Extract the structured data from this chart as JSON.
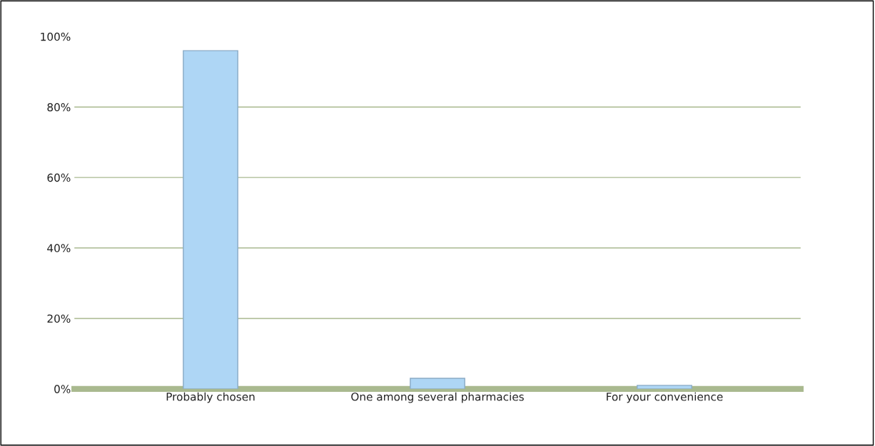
{
  "chart_data": {
    "type": "bar",
    "categories": [
      "Probably chosen",
      "One among several pharmacies",
      "For your convenience"
    ],
    "values": [
      96,
      3,
      1
    ],
    "color": "#aed6f5",
    "ylim": [
      0,
      100
    ],
    "yticks": [
      {
        "value": 0,
        "label": "0%"
      },
      {
        "value": 20,
        "label": "20%"
      },
      {
        "value": 40,
        "label": "40%"
      },
      {
        "value": 60,
        "label": "60%"
      },
      {
        "value": 80,
        "label": "80%"
      },
      {
        "value": 100,
        "label": "100%"
      }
    ],
    "grid": "y"
  }
}
